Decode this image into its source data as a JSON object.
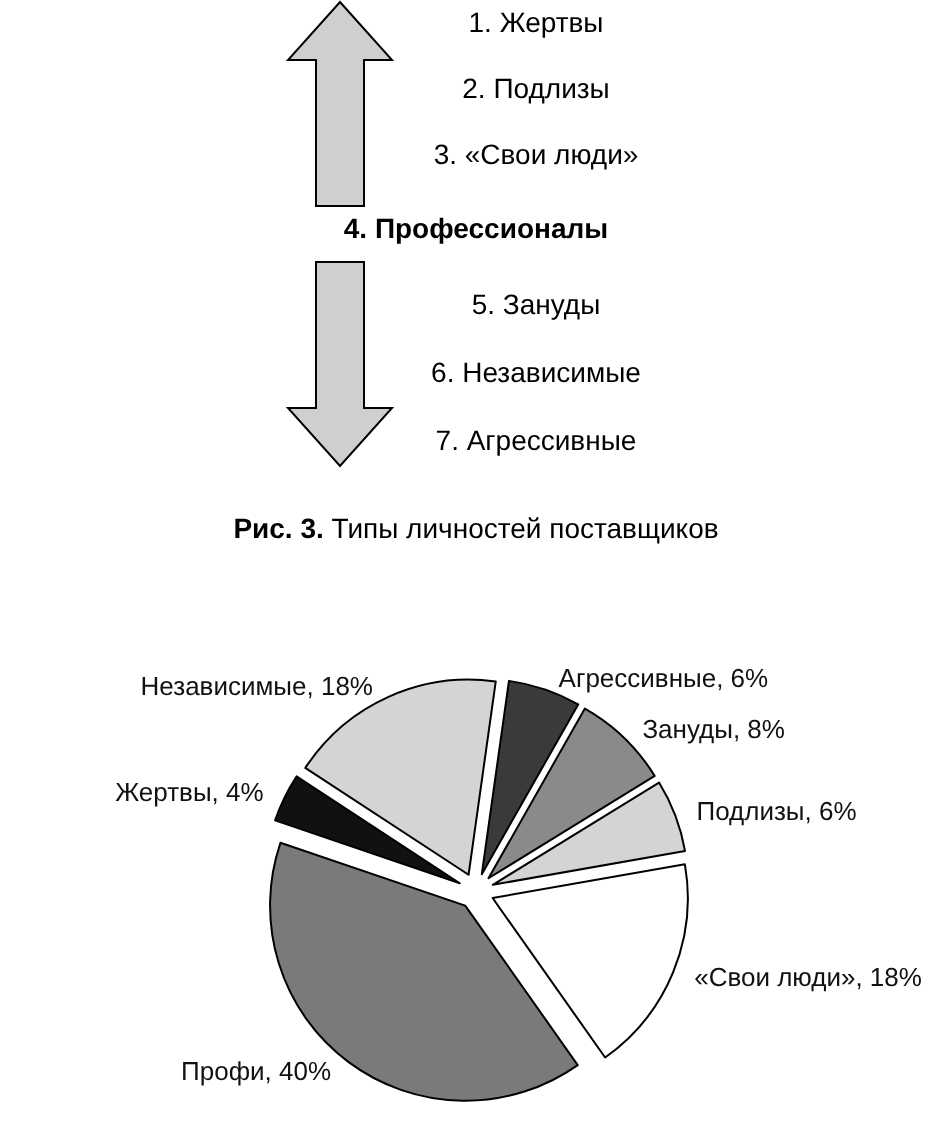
{
  "chart_data": [
    {
      "type": "other",
      "title": "Рис. 3. Типы личностей поставщиков",
      "annotations": [
        "1. Жертвы",
        "2. Подлизы",
        "3. «Свои люди»",
        "4. Профессионалы",
        "5. Зануды",
        "6. Независимые",
        "7. Агрессивные"
      ]
    },
    {
      "type": "pie",
      "categories": [
        "Агрессивные",
        "Зануды",
        "Подлизы",
        "«Свои люди»",
        "Профи",
        "Жертвы",
        "Независимые"
      ],
      "values": [
        6,
        8,
        6,
        18,
        40,
        4,
        18
      ],
      "value_labels": [
        "6%",
        "8%",
        "6%",
        "18%",
        "40%",
        "4%",
        "18%"
      ],
      "colors": [
        "#3a3a3a",
        "#8a8a8a",
        "#d4d4d4",
        "#ffffff",
        "#7a7a7a",
        "#111111",
        "#d4d4d4"
      ]
    }
  ]
}
